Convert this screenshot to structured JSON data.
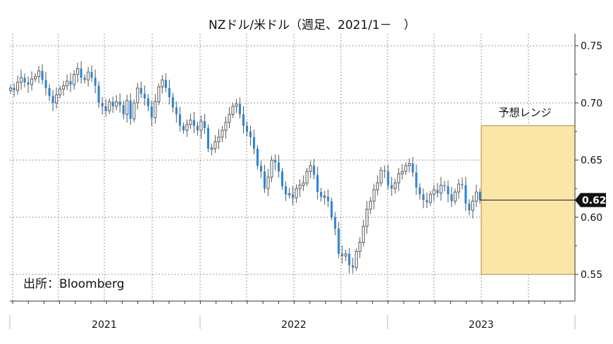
{
  "chart_data": {
    "type": "candlestick",
    "title": "NZドル/米ドル（週足、2021/1－　）",
    "source_note": "出所：Bloomberg",
    "ylim": [
      0.53,
      0.755
    ],
    "y_ticks": [
      "0.75",
      "0.70",
      "0.65",
      "0.60",
      "0.55"
    ],
    "x_labels": [
      "2021",
      "2022",
      "2023"
    ],
    "last_value_label": "0.62",
    "last_value": 0.615,
    "forecast_range": {
      "label": "予想レンジ",
      "low": 0.55,
      "high": 0.68
    },
    "colors": {
      "up": "#5c5c5c",
      "down": "#2b86d8",
      "range_fill": "#fbe6a8",
      "range_border": "#a78e3c"
    },
    "weekly_close": [
      0.713,
      0.711,
      0.718,
      0.722,
      0.718,
      0.716,
      0.721,
      0.723,
      0.728,
      0.72,
      0.713,
      0.706,
      0.7,
      0.707,
      0.712,
      0.715,
      0.719,
      0.716,
      0.725,
      0.73,
      0.722,
      0.72,
      0.727,
      0.722,
      0.715,
      0.7,
      0.697,
      0.693,
      0.701,
      0.697,
      0.701,
      0.698,
      0.69,
      0.702,
      0.686,
      0.7,
      0.713,
      0.708,
      0.704,
      0.697,
      0.687,
      0.701,
      0.714,
      0.72,
      0.713,
      0.705,
      0.696,
      0.69,
      0.68,
      0.676,
      0.681,
      0.685,
      0.68,
      0.676,
      0.684,
      0.678,
      0.66,
      0.66,
      0.666,
      0.67,
      0.676,
      0.683,
      0.69,
      0.697,
      0.699,
      0.69,
      0.68,
      0.675,
      0.67,
      0.66,
      0.645,
      0.64,
      0.625,
      0.635,
      0.65,
      0.648,
      0.64,
      0.627,
      0.62,
      0.62,
      0.617,
      0.625,
      0.628,
      0.63,
      0.64,
      0.645,
      0.637,
      0.622,
      0.618,
      0.618,
      0.614,
      0.6,
      0.59,
      0.568,
      0.566,
      0.568,
      0.558,
      0.556,
      0.57,
      0.578,
      0.592,
      0.607,
      0.614,
      0.624,
      0.63,
      0.641,
      0.64,
      0.628,
      0.625,
      0.63,
      0.638,
      0.64,
      0.645,
      0.647,
      0.639,
      0.626,
      0.62,
      0.615,
      0.613,
      0.62,
      0.624,
      0.621,
      0.628,
      0.627,
      0.62,
      0.614,
      0.622,
      0.629,
      0.628,
      0.612,
      0.606,
      0.614,
      0.622,
      0.615
    ]
  }
}
